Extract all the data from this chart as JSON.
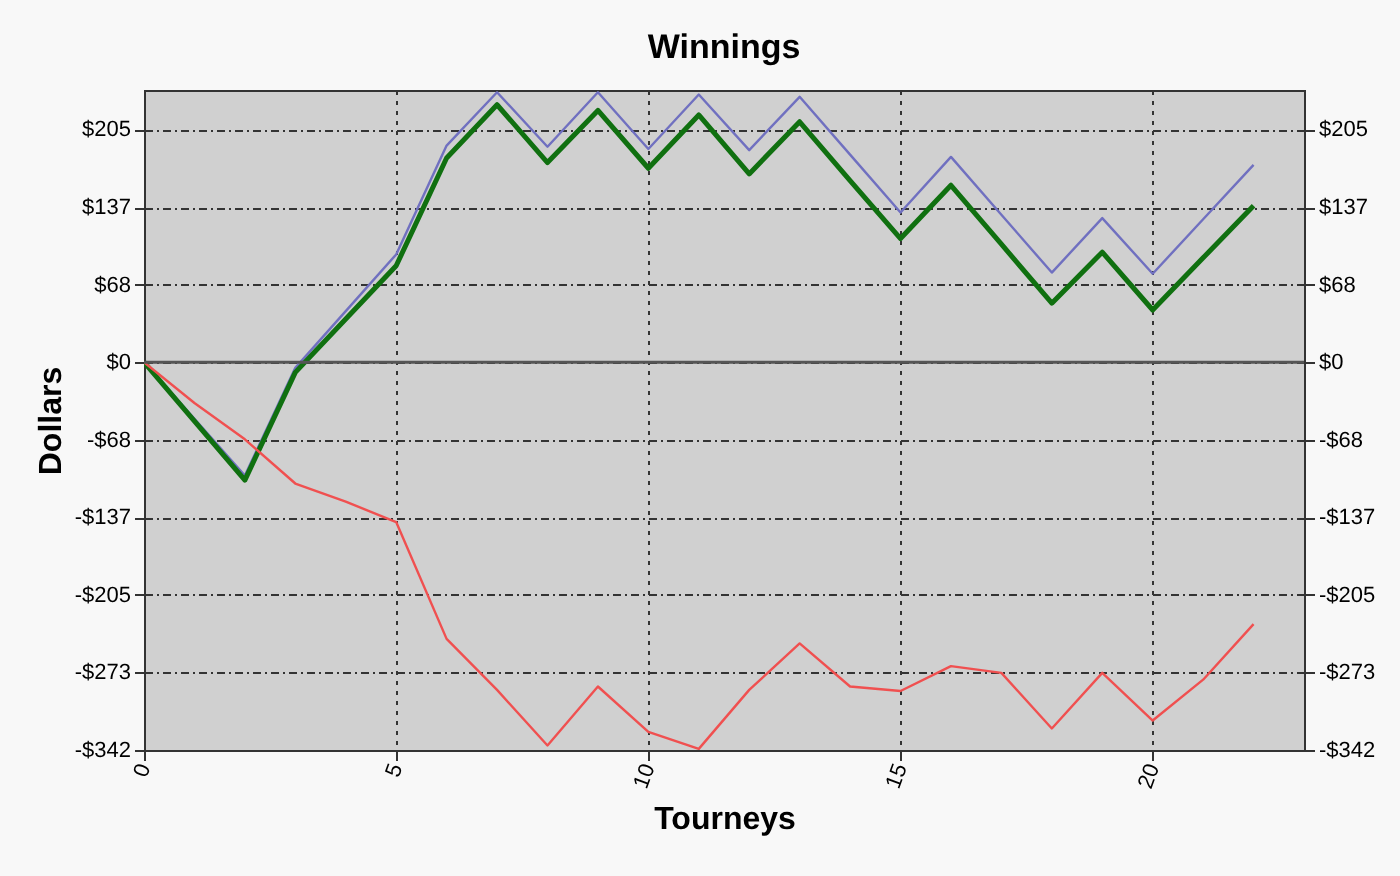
{
  "chart_data": {
    "type": "line",
    "title": "Winnings",
    "xlabel": "Tourneys",
    "ylabel": "Dollars",
    "x": [
      0,
      1,
      2,
      3,
      4,
      5,
      6,
      7,
      8,
      9,
      10,
      11,
      12,
      13,
      14,
      15,
      16,
      17,
      18,
      19,
      20,
      21,
      22
    ],
    "series": [
      {
        "color": "#7070c0",
        "values": [
          0,
          -50,
          -100,
          -5,
          45,
          95,
          191,
          238,
          190,
          238,
          188,
          236,
          187,
          234,
          183,
          132,
          181,
          130,
          79,
          127,
          78,
          126,
          174
        ]
      },
      {
        "color": "#107010",
        "values": [
          0,
          -52,
          -104,
          -9,
          38,
          85,
          180,
          227,
          176,
          222,
          171,
          218,
          166,
          212,
          160,
          109,
          156,
          104,
          52,
          97,
          46,
          92,
          138
        ]
      },
      {
        "color": "#f05050",
        "values": [
          0,
          -36,
          -68,
          -107,
          -123,
          -141,
          -244,
          -289,
          -338,
          -286,
          -326,
          -341,
          -289,
          -248,
          -286,
          -290,
          -268,
          -274,
          -323,
          -274,
          -316,
          -280,
          -231
        ]
      }
    ],
    "xlim": [
      0,
      23
    ],
    "xticks": [
      0,
      5,
      10,
      15,
      20
    ],
    "ylim": [
      -342,
      240
    ],
    "yticks": [
      {
        "value": -342,
        "label": "-$342"
      },
      {
        "value": -273.4,
        "label": "-$273"
      },
      {
        "value": -205.2,
        "label": "-$205"
      },
      {
        "value": -136.8,
        "label": "-$137"
      },
      {
        "value": -68.4,
        "label": "-$68"
      },
      {
        "value": 0,
        "label": "$0"
      },
      {
        "value": 68.4,
        "label": "$68"
      },
      {
        "value": 136.8,
        "label": "$137"
      },
      {
        "value": 205.2,
        "label": "$205"
      }
    ],
    "y2lim": [
      -342,
      240
    ],
    "y2ticks": [
      {
        "value": -342,
        "label": "-$342"
      },
      {
        "value": -273.4,
        "label": "-$273"
      },
      {
        "value": -205.2,
        "label": "-$205"
      },
      {
        "value": -136.8,
        "label": "-$137"
      },
      {
        "value": -68.4,
        "label": "-$68"
      },
      {
        "value": 0,
        "label": "$0"
      },
      {
        "value": 68.4,
        "label": "$68"
      },
      {
        "value": 136.8,
        "label": "$137"
      },
      {
        "value": 205.2,
        "label": "$205"
      }
    ],
    "ref_lines": [
      {
        "axis": "y",
        "value": 0,
        "color": "#555555"
      }
    ],
    "grid": true
  }
}
